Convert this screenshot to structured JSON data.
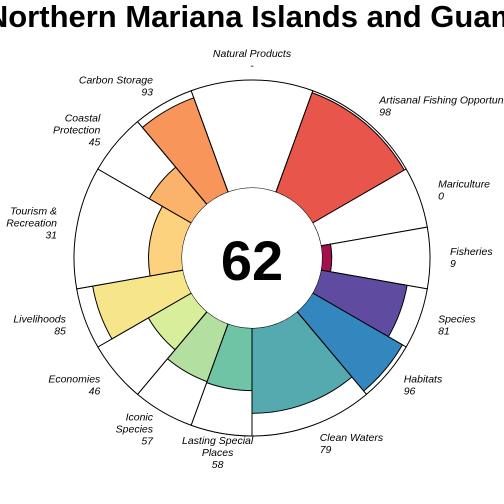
{
  "chart_data": {
    "type": "flower",
    "title": "Northern Mariana Islands and Guam",
    "center_score": "62",
    "ylim": [
      0,
      100
    ],
    "petals": [
      {
        "name": "Natural Products",
        "label_lines": [
          "Natural Products"
        ],
        "value_text": "-",
        "value": null,
        "weight": 1,
        "color": "#9E0142"
      },
      {
        "name": "Artisanal Fishing Opportunities",
        "label_lines": [
          "Artisanal Fishing Opportunities"
        ],
        "value_text": "98",
        "value": 98,
        "weight": 1,
        "color": "#E8554A"
      },
      {
        "name": "Mariculture",
        "label_lines": [
          "Mariculture"
        ],
        "value_text": "0",
        "value": 0,
        "weight": 0.5,
        "color": "#C22F4C"
      },
      {
        "name": "Fisheries",
        "label_lines": [
          "Fisheries"
        ],
        "value_text": "9",
        "value": 9,
        "weight": 0.5,
        "color": "#A3104B"
      },
      {
        "name": "Species",
        "label_lines": [
          "Species"
        ],
        "value_text": "81",
        "value": 81,
        "weight": 0.5,
        "color": "#5F4BA0"
      },
      {
        "name": "Habitats",
        "label_lines": [
          "Habitats"
        ],
        "value_text": "96",
        "value": 96,
        "weight": 0.5,
        "color": "#3387BE"
      },
      {
        "name": "Clean Waters",
        "label_lines": [
          "Clean Waters"
        ],
        "value_text": "79",
        "value": 79,
        "weight": 1,
        "color": "#55AAB0"
      },
      {
        "name": "Lasting Special Places",
        "label_lines": [
          "Lasting Special",
          "Places"
        ],
        "value_text": "58",
        "value": 58,
        "weight": 0.5,
        "color": "#6FC4A6"
      },
      {
        "name": "Iconic Species",
        "label_lines": [
          "Iconic",
          "Species"
        ],
        "value_text": "57",
        "value": 57,
        "weight": 0.5,
        "color": "#B3DFA0"
      },
      {
        "name": "Economies",
        "label_lines": [
          "Economies"
        ],
        "value_text": "46",
        "value": 46,
        "weight": 0.5,
        "color": "#D9EE9A"
      },
      {
        "name": "Livelihoods",
        "label_lines": [
          "Livelihoods"
        ],
        "value_text": "85",
        "value": 85,
        "weight": 0.5,
        "color": "#F7E58C"
      },
      {
        "name": "Tourism & Recreation",
        "label_lines": [
          "Tourism &",
          "Recreation"
        ],
        "value_text": "31",
        "value": 31,
        "weight": 1,
        "color": "#FDD27F"
      },
      {
        "name": "Coastal Protection",
        "label_lines": [
          "Coastal",
          "Protection"
        ],
        "value_text": "45",
        "value": 45,
        "weight": 0.5,
        "color": "#FBB26A"
      },
      {
        "name": "Carbon Storage",
        "label_lines": [
          "Carbon Storage"
        ],
        "value_text": "93",
        "value": 93,
        "weight": 0.5,
        "color": "#F8955A"
      }
    ]
  }
}
